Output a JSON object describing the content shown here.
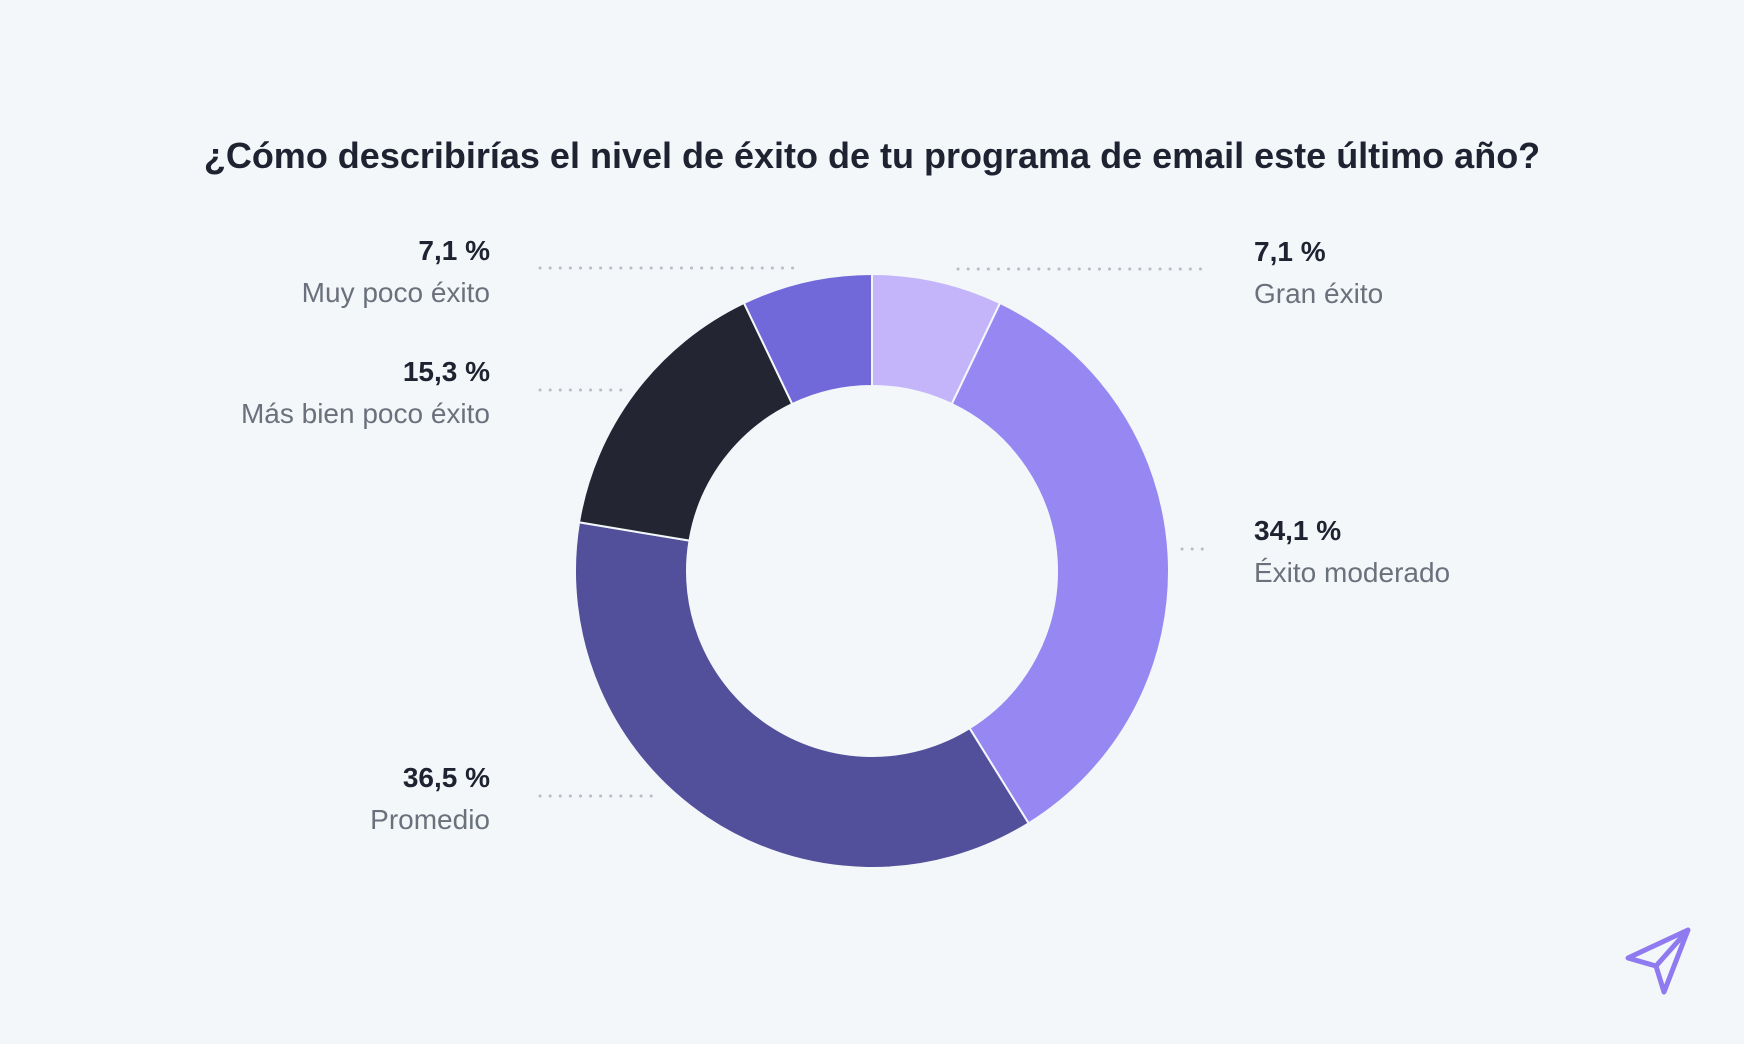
{
  "chart_data": {
    "type": "pie",
    "donut": true,
    "title": "¿Cómo describirías el nivel de éxito de tu programa de email este último año?",
    "categories": [
      "Gran éxito",
      "Éxito moderado",
      "Promedio",
      "Más bien poco éxito",
      "Muy poco éxito"
    ],
    "values": [
      7.1,
      34.1,
      36.5,
      15.3,
      7.1
    ],
    "value_labels": [
      "7,1 %",
      "34,1 %",
      "36,5 %",
      "15,3 %",
      "7,1 %"
    ],
    "colors": [
      "#c4b5fa",
      "#9787f3",
      "#524f9b",
      "#232532",
      "#7168da"
    ],
    "label_side": [
      "right",
      "right",
      "left",
      "left",
      "left"
    ],
    "legend": "none"
  },
  "colors": {
    "background": "#f3f7fa",
    "title": "#1f2230",
    "label_name": "#6b717c",
    "leader_line": "#b9bdc4",
    "logo": "#8f7af0"
  },
  "logo_icon": "paper-plane-icon"
}
